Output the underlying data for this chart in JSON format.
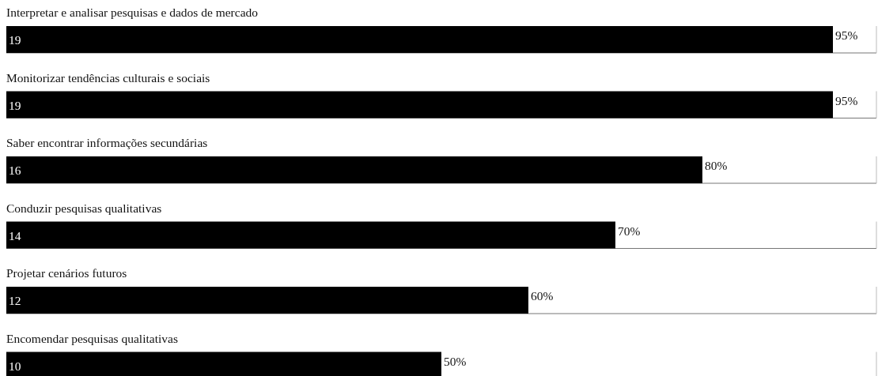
{
  "chart_data": {
    "type": "bar",
    "orientation": "horizontal",
    "categories": [
      "Interpretar e analisar pesquisas e dados de mercado",
      "Monitorizar tendências culturais e sociais",
      "Saber encontrar informações secundárias",
      "Conduzir pesquisas qualitativas",
      "Projetar cenários futuros",
      "Encomendar pesquisas qualitativas"
    ],
    "values": [
      95,
      95,
      80,
      70,
      60,
      50
    ],
    "value_labels": [
      "95%",
      "95%",
      "80%",
      "70%",
      "60%",
      "50%"
    ],
    "color": "#000000",
    "xlim": [
      0,
      100
    ],
    "annotations": [
      "19",
      "19",
      "16",
      "14",
      "12",
      "10"
    ]
  }
}
